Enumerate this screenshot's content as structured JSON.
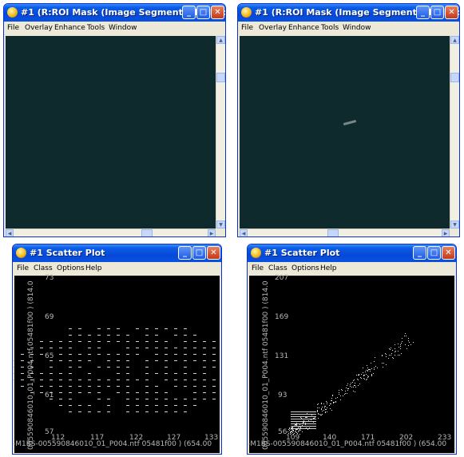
{
  "roi_window_1": {
    "title": "#1 (R:ROI Mask (Image Segment #1: (R) :2...",
    "menu": [
      "File",
      "Overlay",
      "Enhance",
      "Tools",
      "Window"
    ]
  },
  "roi_window_2": {
    "title": "#1 (R:ROI Mask (Image Segment #1: (R) :2...",
    "menu": [
      "File",
      "Overlay",
      "Enhance",
      "Tools",
      "Window"
    ]
  },
  "scatter_window_1": {
    "title": "#1 Scatter Plot",
    "menu": [
      "File",
      "Class",
      "Options",
      "Help"
    ],
    "x_label": "-M1BS-005590846010_01_P004.ntf    05481f00    ) (654.00",
    "y_label": "005590846010_01_P004.ntf    05481f00    ) (814.0",
    "x_ticks": [
      "112",
      "117",
      "122",
      "127",
      "133"
    ],
    "y_ticks": [
      "73",
      "69",
      "65",
      "61",
      "57"
    ]
  },
  "scatter_window_2": {
    "title": "#1 Scatter Plot",
    "menu": [
      "File",
      "Class",
      "Options",
      "Help"
    ],
    "x_label": "-M1BS-005590846010_01_P004.ntf    05481f00    ) (654.00",
    "y_label": "005590846010_01_P004.ntf    05481f00    ) (814.0",
    "x_ticks": [
      "109",
      "140",
      "171",
      "202",
      "233"
    ],
    "y_ticks": [
      "207",
      "169",
      "131",
      "93",
      "56"
    ]
  },
  "buttons": {
    "minimize": "_",
    "maximize": "□",
    "close": "✕"
  },
  "colors": {
    "titlebar": "#0a5de8",
    "roi_canvas": "#0f2a2c",
    "plot_bg": "#000000"
  }
}
